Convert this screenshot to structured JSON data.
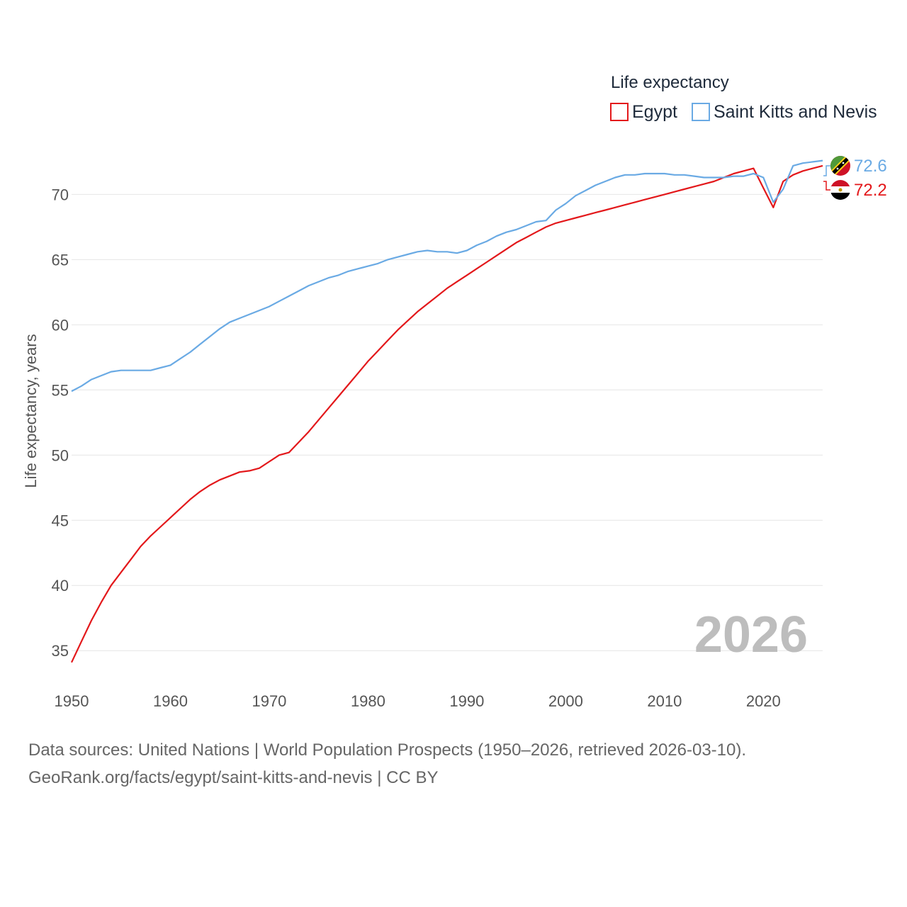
{
  "colors": {
    "egypt": "#e3181b",
    "skn": "#6aaae4",
    "grid": "#e6e6e6",
    "text": "#555555",
    "year_watermark": "#bdbdbd"
  },
  "footer": {
    "source": "Data sources: United Nations | World Population Prospects (1950–2026, retrieved 2026-03-10).",
    "credit": "GeoRank.org/facts/egypt/saint-kitts-and-nevis | CC BY"
  },
  "chart_data": {
    "type": "line",
    "title": "",
    "xlabel": "",
    "ylabel": "Life expectancy, years",
    "legend_title": "Life expectancy",
    "legend_position": "top-right",
    "year_watermark": "2026",
    "xlim": [
      1950,
      2026
    ],
    "ylim": [
      33,
      73.5
    ],
    "x_ticks": [
      1950,
      1960,
      1970,
      1980,
      1990,
      2000,
      2010,
      2020
    ],
    "y_ticks": [
      35,
      40,
      45,
      50,
      55,
      60,
      65,
      70
    ],
    "x": [
      1950,
      1951,
      1952,
      1953,
      1954,
      1955,
      1956,
      1957,
      1958,
      1959,
      1960,
      1961,
      1962,
      1963,
      1964,
      1965,
      1966,
      1967,
      1968,
      1969,
      1970,
      1971,
      1972,
      1973,
      1974,
      1975,
      1976,
      1977,
      1978,
      1979,
      1980,
      1981,
      1982,
      1983,
      1984,
      1985,
      1986,
      1987,
      1988,
      1989,
      1990,
      1991,
      1992,
      1993,
      1994,
      1995,
      1996,
      1997,
      1998,
      1999,
      2000,
      2001,
      2002,
      2003,
      2004,
      2005,
      2006,
      2007,
      2008,
      2009,
      2010,
      2011,
      2012,
      2013,
      2014,
      2015,
      2016,
      2017,
      2018,
      2019,
      2020,
      2021,
      2022,
      2023,
      2024,
      2025,
      2026
    ],
    "series": [
      {
        "name": "Egypt",
        "color": "#e3181b",
        "end_label": "72.2",
        "values": [
          34.1,
          35.7,
          37.3,
          38.7,
          40.0,
          41.0,
          42.0,
          43.0,
          43.8,
          44.5,
          45.2,
          45.9,
          46.6,
          47.2,
          47.7,
          48.1,
          48.4,
          48.7,
          48.8,
          49.0,
          49.5,
          50.0,
          50.2,
          51.0,
          51.8,
          52.7,
          53.6,
          54.5,
          55.4,
          56.3,
          57.2,
          58.0,
          58.8,
          59.6,
          60.3,
          61.0,
          61.6,
          62.2,
          62.8,
          63.3,
          63.8,
          64.3,
          64.8,
          65.3,
          65.8,
          66.3,
          66.7,
          67.1,
          67.5,
          67.8,
          68.0,
          68.2,
          68.4,
          68.6,
          68.8,
          69.0,
          69.2,
          69.4,
          69.6,
          69.8,
          70.0,
          70.2,
          70.4,
          70.6,
          70.8,
          71.0,
          71.3,
          71.6,
          71.8,
          72.0,
          70.5,
          69.0,
          71.0,
          71.5,
          71.8,
          72.0,
          72.2
        ]
      },
      {
        "name": "Saint Kitts and Nevis",
        "color": "#6aaae4",
        "end_label": "72.6",
        "values": [
          54.9,
          55.3,
          55.8,
          56.1,
          56.4,
          56.5,
          56.5,
          56.5,
          56.5,
          56.7,
          56.9,
          57.4,
          57.9,
          58.5,
          59.1,
          59.7,
          60.2,
          60.5,
          60.8,
          61.1,
          61.4,
          61.8,
          62.2,
          62.6,
          63.0,
          63.3,
          63.6,
          63.8,
          64.1,
          64.3,
          64.5,
          64.7,
          65.0,
          65.2,
          65.4,
          65.6,
          65.7,
          65.6,
          65.6,
          65.5,
          65.7,
          66.1,
          66.4,
          66.8,
          67.1,
          67.3,
          67.6,
          67.9,
          68.0,
          68.8,
          69.3,
          69.9,
          70.3,
          70.7,
          71.0,
          71.3,
          71.5,
          71.5,
          71.6,
          71.6,
          71.6,
          71.5,
          71.5,
          71.4,
          71.3,
          71.3,
          71.3,
          71.4,
          71.4,
          71.6,
          71.3,
          69.4,
          70.4,
          72.2,
          72.4,
          72.5,
          72.6
        ]
      }
    ]
  }
}
